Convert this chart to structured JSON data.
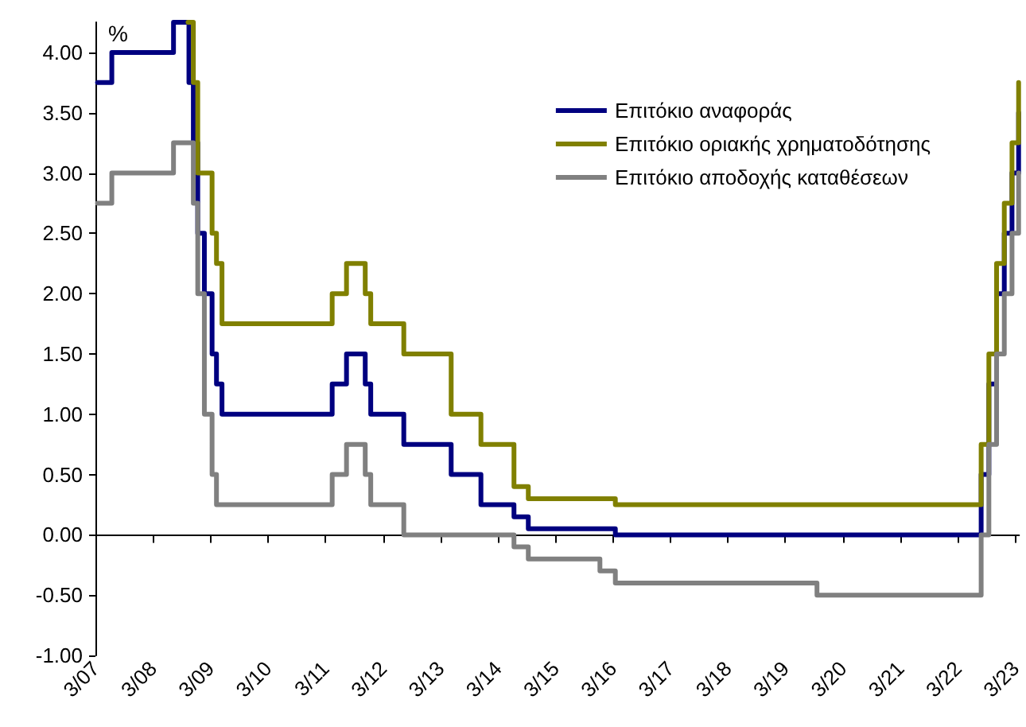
{
  "chart_data": {
    "type": "step",
    "ylabel": "%",
    "legend": "top right",
    "marker": "none",
    "line_style": "solid",
    "xlim": [
      "2007-03-01",
      "2023-03-25"
    ],
    "xticks": [
      {
        "value": "2007-03-01",
        "label": "3/07"
      },
      {
        "value": "2008-03-01",
        "label": "3/08"
      },
      {
        "value": "2009-03-01",
        "label": "3/09"
      },
      {
        "value": "2010-03-01",
        "label": "3/10"
      },
      {
        "value": "2011-03-01",
        "label": "3/11"
      },
      {
        "value": "2012-03-01",
        "label": "3/12"
      },
      {
        "value": "2013-03-01",
        "label": "3/13"
      },
      {
        "value": "2014-03-01",
        "label": "3/14"
      },
      {
        "value": "2015-03-01",
        "label": "3/15"
      },
      {
        "value": "2016-03-01",
        "label": "3/16"
      },
      {
        "value": "2017-03-01",
        "label": "3/17"
      },
      {
        "value": "2018-03-01",
        "label": "3/18"
      },
      {
        "value": "2019-03-01",
        "label": "3/19"
      },
      {
        "value": "2020-03-01",
        "label": "3/20"
      },
      {
        "value": "2021-03-01",
        "label": "3/21"
      },
      {
        "value": "2022-03-01",
        "label": "3/22"
      },
      {
        "value": "2023-03-01",
        "label": "3/23"
      }
    ],
    "ylim": [
      -1,
      4.25
    ],
    "yticks": [
      {
        "value": -1,
        "label": "-1.00"
      },
      {
        "value": -0.5,
        "label": "-0.50"
      },
      {
        "value": 0,
        "label": "0.00"
      },
      {
        "value": 0.5,
        "label": "0.50"
      },
      {
        "value": 1,
        "label": "1.00"
      },
      {
        "value": 1.5,
        "label": "1.50"
      },
      {
        "value": 2,
        "label": "2.00"
      },
      {
        "value": 2.5,
        "label": "2.50"
      },
      {
        "value": 3,
        "label": "3.00"
      },
      {
        "value": 3.5,
        "label": "3.50"
      },
      {
        "value": 4,
        "label": "4.00"
      }
    ],
    "series": [
      {
        "name": "Επιτόκιο αναφοράς",
        "color": "#000080",
        "x": [
          "2007-03-14",
          "2007-06-13",
          "2008-07-09",
          "2008-10-15",
          "2008-11-12",
          "2008-12-10",
          "2009-01-21",
          "2009-03-11",
          "2009-04-08",
          "2009-05-13",
          "2011-04-13",
          "2011-07-13",
          "2011-11-09",
          "2011-12-14",
          "2012-07-11",
          "2013-05-08",
          "2013-11-13",
          "2014-06-11",
          "2014-09-10",
          "2016-03-16",
          "2022-07-27",
          "2022-09-14",
          "2022-11-02",
          "2022-12-21",
          "2023-02-08",
          "2023-03-22"
        ],
        "values": [
          3.75,
          4.0,
          4.25,
          3.75,
          3.25,
          2.5,
          2.0,
          1.5,
          1.25,
          1.0,
          1.25,
          1.5,
          1.25,
          1.0,
          0.75,
          0.5,
          0.25,
          0.15,
          0.05,
          0.0,
          0.5,
          1.25,
          2.0,
          2.5,
          3.0,
          3.5
        ]
      },
      {
        "name": "Επιτόκιο οριακής χρηματοδότησης",
        "color": "#808000",
        "x": [
          "2008-10-09",
          "2008-11-12",
          "2008-12-10",
          "2009-03-11",
          "2009-04-08",
          "2009-05-13",
          "2011-04-13",
          "2011-07-13",
          "2011-11-09",
          "2011-12-14",
          "2012-07-11",
          "2013-05-08",
          "2013-11-13",
          "2014-06-11",
          "2014-09-10",
          "2016-03-16",
          "2022-07-27",
          "2022-09-14",
          "2022-11-02",
          "2022-12-21",
          "2023-02-08",
          "2023-03-22"
        ],
        "values": [
          4.25,
          3.75,
          3.0,
          2.5,
          2.25,
          1.75,
          2.0,
          2.25,
          2.0,
          1.75,
          1.5,
          1.0,
          0.75,
          0.4,
          0.3,
          0.25,
          0.75,
          1.5,
          2.25,
          2.75,
          3.25,
          3.75
        ]
      },
      {
        "name": "Επιτόκιο αποδοχής καταθέσεων",
        "color": "#808080",
        "x": [
          "2007-03-14",
          "2007-06-13",
          "2008-07-09",
          "2008-10-09",
          "2008-11-12",
          "2008-12-10",
          "2009-01-21",
          "2009-03-11",
          "2009-04-08",
          "2011-04-13",
          "2011-07-13",
          "2011-11-09",
          "2011-12-14",
          "2012-07-11",
          "2014-06-11",
          "2014-09-10",
          "2015-12-09",
          "2016-03-16",
          "2019-09-18",
          "2022-07-27",
          "2022-09-14",
          "2022-11-02",
          "2022-12-21",
          "2023-02-08",
          "2023-03-22"
        ],
        "values": [
          2.75,
          3.0,
          3.25,
          3.25,
          2.75,
          2.0,
          1.0,
          0.5,
          0.25,
          0.5,
          0.75,
          0.5,
          0.25,
          0.0,
          -0.1,
          -0.2,
          -0.3,
          -0.4,
          -0.5,
          0.0,
          0.75,
          1.5,
          2.0,
          2.5,
          3.0
        ]
      }
    ]
  }
}
